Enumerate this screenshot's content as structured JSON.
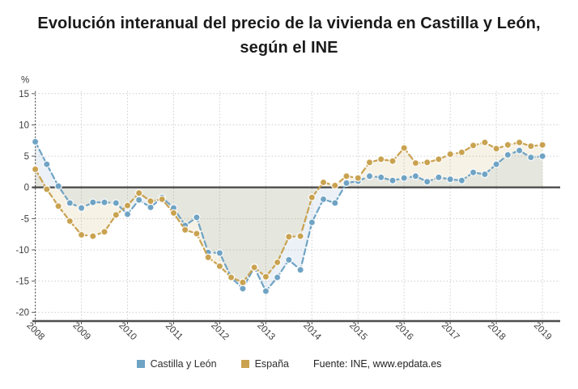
{
  "title": "Evolución interanual del precio de la vivienda en Castilla y León, según el INE",
  "y_axis_unit": "%",
  "source": "Fuente: INE, www.epdata.es",
  "legend": {
    "castilla_leon": "Castilla y León",
    "espana": "España"
  },
  "colors": {
    "castilla_leon": "#6fa3c4",
    "espana": "#c9a250",
    "castilla_leon_fill": "#8fb4cf",
    "espana_fill": "#c9a250",
    "grid": "#cccccc",
    "axis": "#4d4d4d",
    "tick_label": "#3d3d3d",
    "title_text": "#1b1b1b"
  },
  "chart_data": {
    "type": "line",
    "frequency": "quarterly",
    "x_start": "2008",
    "x_end": "2019",
    "x_tick_labels": [
      "2008",
      "2009",
      "2010",
      "2011",
      "2012",
      "2013",
      "2014",
      "2015",
      "2016",
      "2017",
      "2018",
      "2019"
    ],
    "y_tick_labels": [
      "15",
      "10",
      "5",
      "0",
      "-5",
      "-10",
      "-15",
      "-20"
    ],
    "y_ticks": [
      15,
      10,
      5,
      0,
      -5,
      -10,
      -15,
      -20
    ],
    "ylim": [
      -20,
      15
    ],
    "grid": true,
    "legend_position": "bottom",
    "series": [
      {
        "name": "Castilla y León",
        "values": [
          7.3,
          3.7,
          0.2,
          -2.5,
          -3.3,
          -2.4,
          -2.4,
          -2.5,
          -4.3,
          -2.0,
          -3.2,
          -1.6,
          -3.3,
          -6.1,
          -4.8,
          -10.4,
          -10.5,
          -14.4,
          -16.2,
          -12.8,
          -16.6,
          -14.4,
          -11.6,
          -13.2,
          -5.6,
          -1.9,
          -2.5,
          0.7,
          1.0,
          1.8,
          1.6,
          1.1,
          1.5,
          1.8,
          0.9,
          1.6,
          1.3,
          1.1,
          2.4,
          2.1,
          3.7,
          5.2,
          5.9,
          4.8,
          5.0
        ]
      },
      {
        "name": "España",
        "values": [
          2.9,
          -0.3,
          -3.0,
          -5.4,
          -7.6,
          -7.8,
          -7.1,
          -4.4,
          -2.9,
          -0.9,
          -2.2,
          -1.9,
          -4.1,
          -6.8,
          -7.4,
          -11.2,
          -12.6,
          -14.4,
          -15.2,
          -12.8,
          -14.3,
          -12.0,
          -7.9,
          -7.8,
          -1.6,
          0.8,
          0.3,
          1.8,
          1.5,
          4.0,
          4.5,
          4.2,
          6.3,
          3.9,
          4.0,
          4.5,
          5.3,
          5.6,
          6.7,
          7.2,
          6.2,
          6.8,
          7.2,
          6.6,
          6.8
        ]
      }
    ]
  }
}
